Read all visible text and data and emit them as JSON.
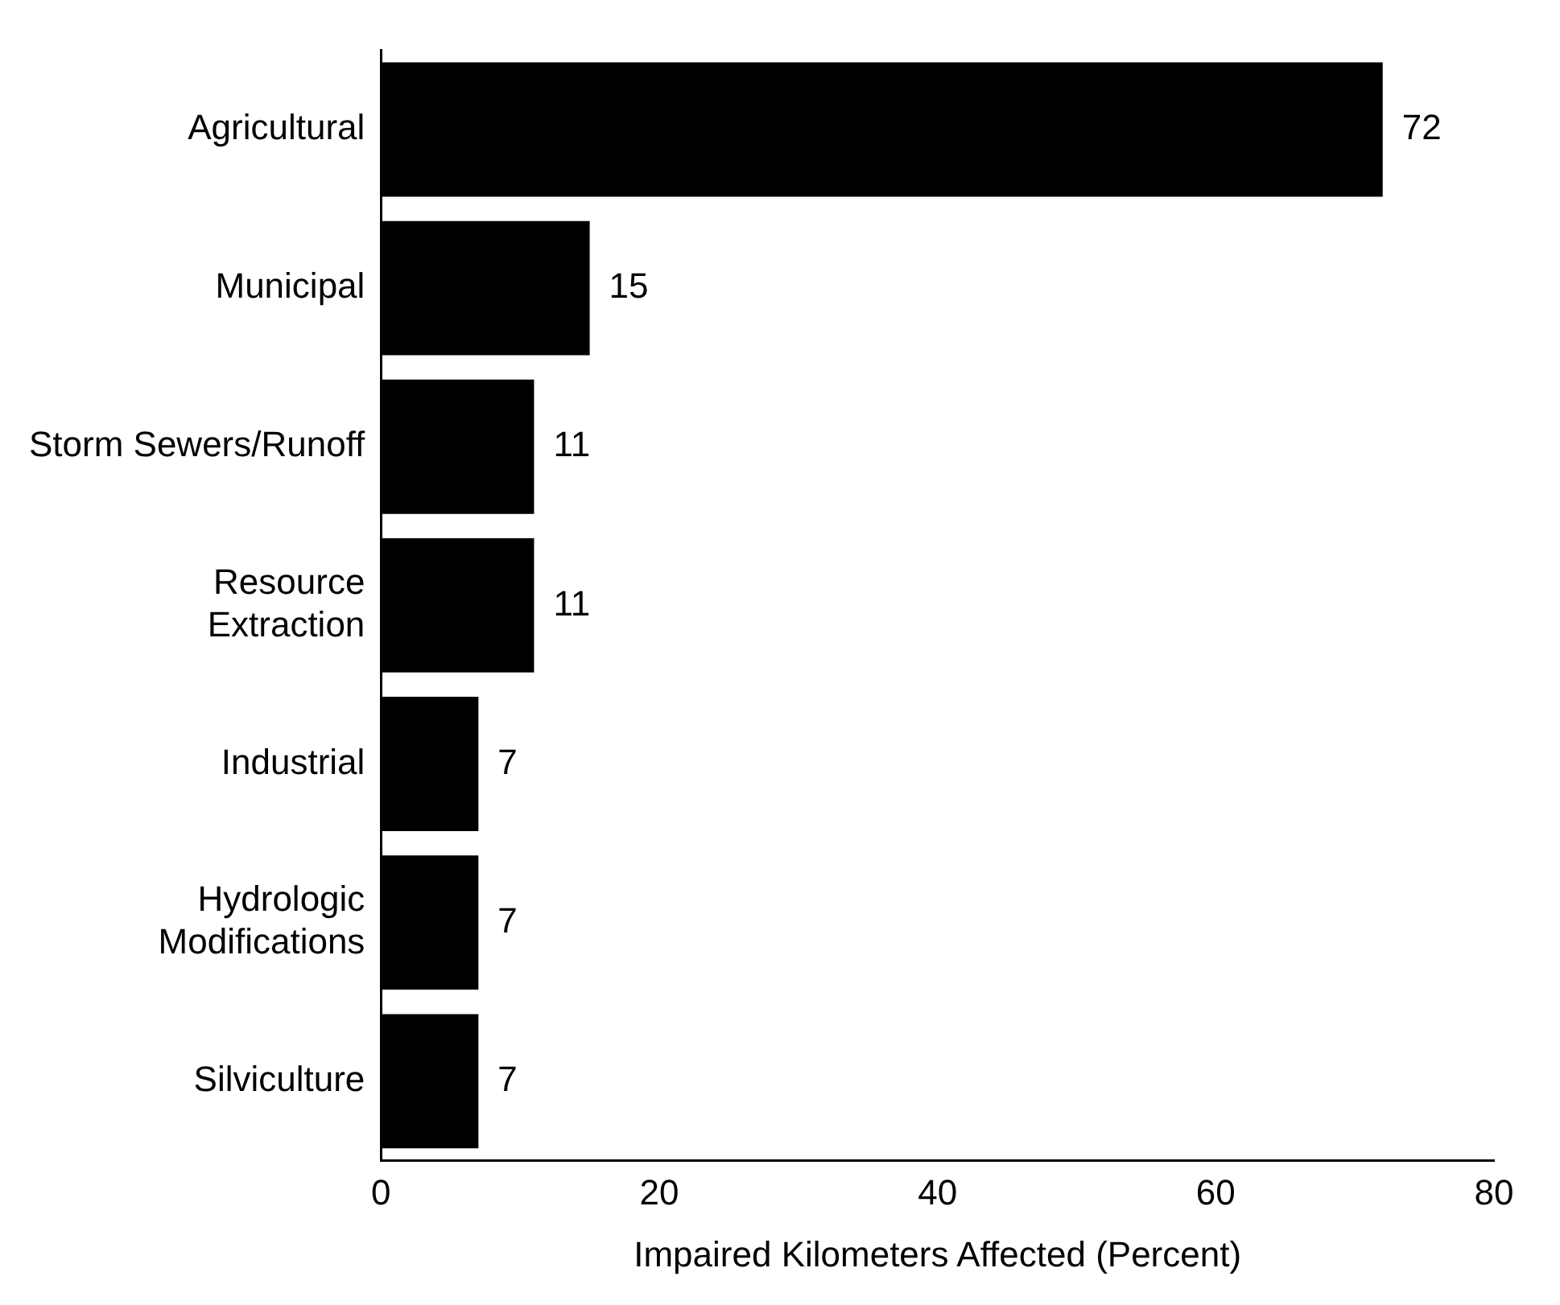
{
  "chart_data": {
    "type": "bar",
    "orientation": "horizontal",
    "categories": [
      "Agricultural",
      "Municipal",
      "Storm Sewers/Runoff",
      "Resource\nExtraction",
      "Industrial",
      "Hydrologic\nModifications",
      "Silviculture"
    ],
    "values": [
      72,
      15,
      11,
      11,
      7,
      7,
      7
    ],
    "color": "#000000",
    "xlim": [
      0,
      80
    ],
    "xticks": [
      0,
      20,
      40,
      60,
      80
    ],
    "xlabel": "Impaired Kilometers Affected (Percent)",
    "data_labels": true,
    "grid": false,
    "legend": false
  }
}
